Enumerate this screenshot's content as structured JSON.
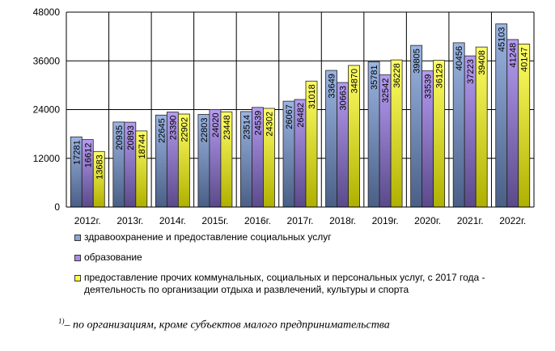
{
  "chart_data": {
    "type": "bar",
    "categories": [
      "2012г.",
      "2013г.",
      "2014г.",
      "2015г.",
      "2016г.",
      "2017г.",
      "2018г.",
      "2019г.",
      "2020г.",
      "2021г.",
      "2022г."
    ],
    "series": [
      {
        "name": "здравоохранение и предоставление социальных услуг",
        "color": "#8aa6d6",
        "values": [
          17281,
          20935,
          22645,
          22803,
          23514,
          26067,
          33649,
          35781,
          39805,
          40456,
          45103
        ]
      },
      {
        "name": "образование",
        "color": "#a98de8",
        "values": [
          16612,
          20893,
          23390,
          24020,
          24539,
          26482,
          30663,
          32542,
          33539,
          37223,
          41248
        ]
      },
      {
        "name": "предоставление прочих коммунальных, социальных и персональных услуг, с 2017 года - деятельность по организации отдыха и развлечений, культуры и спорта",
        "color": "#ffff40",
        "values": [
          13683,
          18744,
          22902,
          23448,
          24302,
          31018,
          34870,
          36228,
          36129,
          39408,
          40147
        ]
      }
    ],
    "yticks": [
      "0",
      "12000",
      "24000",
      "36000",
      "48000"
    ],
    "ylim": [
      0,
      48000
    ],
    "grid": true,
    "legend_position": "bottom"
  },
  "footnote": {
    "marker": "1)",
    "text": "– по организациям, кроме субъектов малого предпринимательства"
  }
}
